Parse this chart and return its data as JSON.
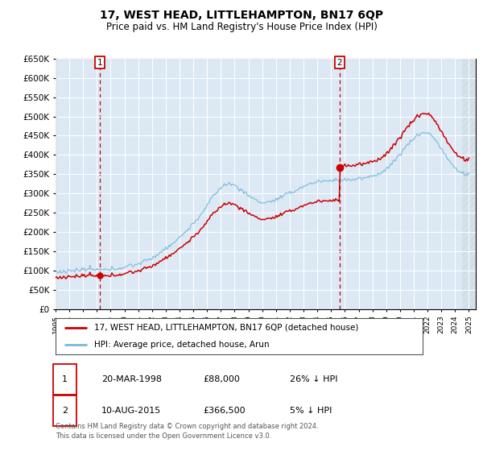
{
  "title": "17, WEST HEAD, LITTLEHAMPTON, BN17 6QP",
  "subtitle": "Price paid vs. HM Land Registry's House Price Index (HPI)",
  "bg_color": "#dce9f5",
  "hpi_color": "#7ab8d9",
  "price_color": "#cc0000",
  "marker_color": "#cc0000",
  "dashed_color": "#cc0000",
  "ylim_min": 0,
  "ylim_max": 650000,
  "ytick_step": 50000,
  "sale1_year": 1998.22,
  "sale1_price": 88000,
  "sale2_year": 2015.62,
  "sale2_price": 366500,
  "legend_label_price": "17, WEST HEAD, LITTLEHAMPTON, BN17 6QP (detached house)",
  "legend_label_hpi": "HPI: Average price, detached house, Arun",
  "annotation1_date": "20-MAR-1998",
  "annotation1_price": "£88,000",
  "annotation1_hpi": "26% ↓ HPI",
  "annotation2_date": "10-AUG-2015",
  "annotation2_price": "£366,500",
  "annotation2_hpi": "5% ↓ HPI",
  "footer": "Contains HM Land Registry data © Crown copyright and database right 2024.\nThis data is licensed under the Open Government Licence v3.0.",
  "xmin": 1995,
  "xmax": 2025.5,
  "hatch_start": 2024.5
}
